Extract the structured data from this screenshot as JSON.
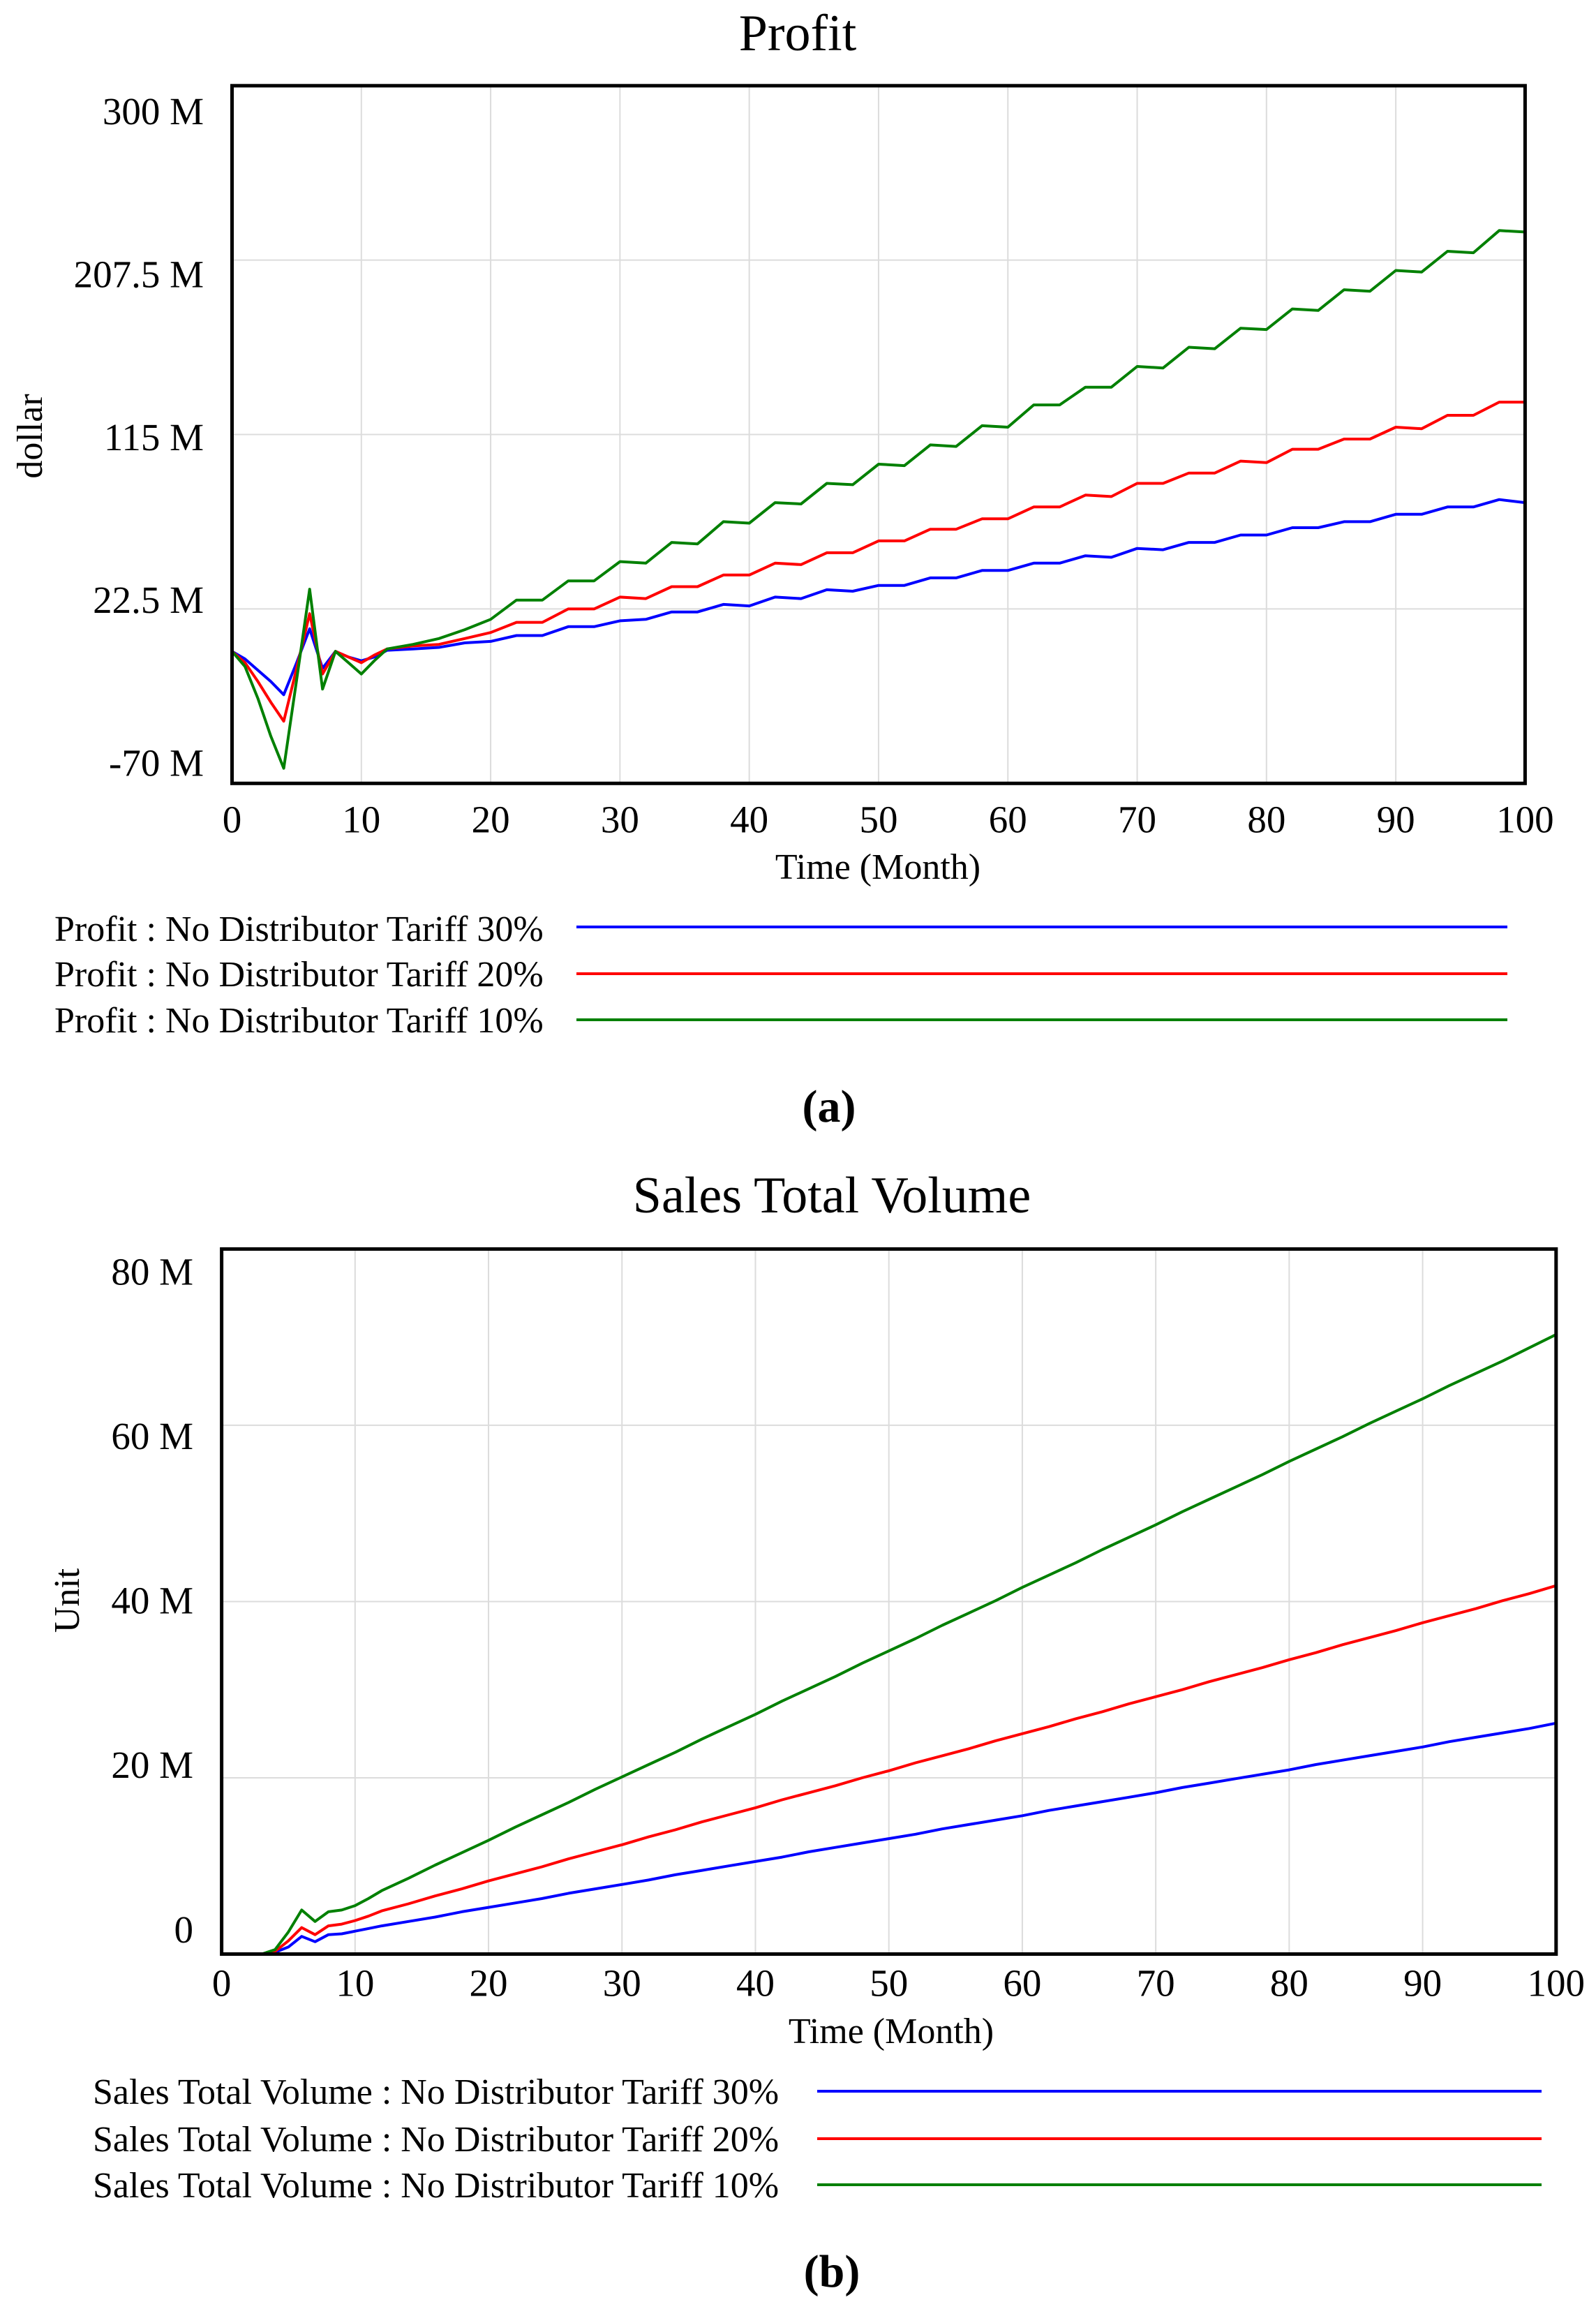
{
  "chart_data": [
    {
      "type": "line",
      "title": "Profit",
      "xlabel": "Time (Month)",
      "ylabel": "dollar",
      "xlim": [
        0,
        100
      ],
      "ylim": [
        -70,
        300
      ],
      "grid": true,
      "legend_position": "bottom",
      "xticks": [
        0,
        10,
        20,
        30,
        40,
        50,
        60,
        70,
        80,
        90,
        100
      ],
      "xtick_labels": [
        "0",
        "10",
        "20",
        "30",
        "40",
        "50",
        "60",
        "70",
        "80",
        "90",
        "100"
      ],
      "yticks": [
        300,
        207.5,
        115,
        22.5,
        -70
      ],
      "ytick_labels": [
        "300 M",
        "207.5 M",
        "115 M",
        "22.5 M",
        "-70 M"
      ],
      "x": [
        0,
        1,
        2,
        3,
        4,
        5,
        6,
        7,
        8,
        9,
        10,
        11,
        12,
        14,
        16,
        18,
        20,
        22,
        24,
        26,
        28,
        30,
        32,
        34,
        36,
        38,
        40,
        42,
        44,
        46,
        48,
        50,
        52,
        54,
        56,
        58,
        60,
        62,
        64,
        66,
        68,
        70,
        72,
        74,
        76,
        78,
        80,
        82,
        84,
        86,
        88,
        90,
        92,
        94,
        96,
        98,
        100
      ],
      "series": [
        {
          "name": "Profit : No Distributor Tariff 30%",
          "color": "#0000ff",
          "values": [
            0,
            -4,
            -10,
            -16,
            -23,
            -6,
            12,
            -9,
            0,
            -3,
            -5,
            -3,
            0.6,
            1.3,
            2.1,
            4.5,
            5.3,
            8.4,
            8.4,
            13.1,
            13.1,
            16.2,
            17.0,
            20.9,
            20.9,
            24.9,
            24.1,
            28.8,
            28.0,
            32.7,
            31.9,
            35.0,
            35.0,
            39.0,
            39.0,
            42.9,
            42.9,
            46.8,
            46.8,
            50.7,
            49.9,
            54.6,
            53.9,
            57.8,
            57.8,
            61.7,
            61.7,
            65.6,
            65.6,
            68.8,
            68.8,
            72.7,
            72.7,
            76.6,
            76.6,
            80.5,
            78.9
          ]
        },
        {
          "name": "Profit : No Distributor Tariff 20%",
          "color": "#ff0000",
          "values": [
            0,
            -6,
            -16,
            -27,
            -37,
            -9,
            20,
            -12,
            0,
            -3,
            -6,
            -2,
            1.3,
            2.9,
            3.7,
            6.8,
            10.0,
            15.4,
            15.4,
            22.5,
            22.5,
            28.8,
            28.0,
            34.3,
            34.3,
            40.5,
            40.5,
            46.8,
            46.0,
            52.3,
            52.3,
            58.6,
            58.6,
            64.8,
            64.8,
            70.3,
            70.3,
            76.6,
            76.6,
            82.9,
            82.1,
            89.1,
            89.1,
            94.6,
            94.6,
            100.9,
            100.1,
            107.2,
            107.2,
            112.6,
            112.6,
            118.9,
            118.1,
            125.2,
            125.2,
            132.2,
            132.2
          ]
        },
        {
          "name": "Profit : No Distributor Tariff 10%",
          "color": "#008000",
          "values": [
            0,
            -8,
            -25,
            -45,
            -62,
            -15,
            33,
            -20,
            0,
            -6,
            -12,
            -5,
            1.3,
            3.7,
            6.8,
            11.5,
            17.0,
            27.2,
            27.2,
            37.4,
            37.4,
            47.6,
            46.8,
            57.8,
            57.0,
            68.8,
            68.0,
            78.9,
            78.2,
            89.1,
            88.4,
            99.3,
            98.5,
            109.5,
            108.7,
            119.7,
            118.9,
            130.7,
            130.7,
            140.1,
            140.1,
            151.1,
            150.3,
            161.3,
            160.5,
            171.4,
            170.7,
            181.6,
            180.8,
            191.8,
            191.0,
            202.0,
            201.2,
            212.2,
            211.4,
            223.2,
            222.4
          ]
        }
      ],
      "caption": "(a)"
    },
    {
      "type": "line",
      "title": "Sales Total Volume",
      "xlabel": "Time (Month)",
      "ylabel": "Unit",
      "xlim": [
        0,
        100
      ],
      "ylim": [
        0,
        80
      ],
      "grid": true,
      "legend_position": "bottom",
      "xticks": [
        0,
        10,
        20,
        30,
        40,
        50,
        60,
        70,
        80,
        90,
        100
      ],
      "xtick_labels": [
        "0",
        "10",
        "20",
        "30",
        "40",
        "50",
        "60",
        "70",
        "80",
        "90",
        "100"
      ],
      "yticks": [
        80,
        60,
        40,
        20,
        0
      ],
      "ytick_labels": [
        "80 M",
        "60 M",
        "40 M",
        "20 M",
        "0"
      ],
      "x": [
        0,
        1,
        2,
        3,
        4,
        5,
        6,
        7,
        8,
        9,
        10,
        11,
        12,
        14,
        16,
        18,
        20,
        22,
        24,
        26,
        28,
        30,
        32,
        34,
        36,
        38,
        40,
        42,
        44,
        46,
        48,
        50,
        52,
        54,
        56,
        58,
        60,
        62,
        64,
        66,
        68,
        70,
        72,
        74,
        76,
        78,
        80,
        82,
        84,
        86,
        88,
        90,
        92,
        94,
        96,
        98,
        100
      ],
      "series": [
        {
          "name": "Sales Total Volume : No Distributor Tariff 30%",
          "color": "#0000ff",
          "values": [
            0,
            0,
            0,
            0,
            0.2,
            0.8,
            2.0,
            1.4,
            2.2,
            2.3,
            2.6,
            2.9,
            3.2,
            3.7,
            4.2,
            4.8,
            5.3,
            5.8,
            6.3,
            6.9,
            7.4,
            7.9,
            8.4,
            9.0,
            9.5,
            10.0,
            10.5,
            11.0,
            11.6,
            12.1,
            12.6,
            13.1,
            13.6,
            14.2,
            14.7,
            15.2,
            15.7,
            16.3,
            16.8,
            17.3,
            17.8,
            18.3,
            18.9,
            19.4,
            19.9,
            20.4,
            20.9,
            21.5,
            22.0,
            22.5,
            23.0,
            23.5,
            24.1,
            24.6,
            25.1,
            25.6,
            26.2
          ]
        },
        {
          "name": "Sales Total Volume : No Distributor Tariff 20%",
          "color": "#ff0000",
          "values": [
            0,
            0,
            0,
            0,
            0.3,
            1.5,
            3.0,
            2.2,
            3.2,
            3.4,
            3.8,
            4.3,
            4.9,
            5.7,
            6.6,
            7.4,
            8.3,
            9.1,
            9.9,
            10.8,
            11.6,
            12.4,
            13.3,
            14.1,
            15.0,
            15.8,
            16.6,
            17.5,
            18.3,
            19.1,
            20.0,
            20.8,
            21.7,
            22.5,
            23.3,
            24.2,
            25.0,
            25.8,
            26.7,
            27.5,
            28.4,
            29.2,
            30.0,
            30.9,
            31.7,
            32.5,
            33.4,
            34.2,
            35.1,
            35.9,
            36.7,
            37.6,
            38.4,
            39.2,
            40.1,
            40.9,
            41.8
          ]
        },
        {
          "name": "Sales Total Volume : No Distributor Tariff 10%",
          "color": "#008000",
          "values": [
            0,
            0,
            0,
            0,
            0.5,
            2.5,
            5.0,
            3.7,
            4.8,
            5.0,
            5.5,
            6.3,
            7.2,
            8.6,
            10.1,
            11.5,
            12.9,
            14.4,
            15.8,
            17.2,
            18.7,
            20.1,
            21.5,
            22.9,
            24.4,
            25.8,
            27.2,
            28.7,
            30.1,
            31.5,
            33.0,
            34.4,
            35.8,
            37.3,
            38.7,
            40.1,
            41.6,
            43.0,
            44.4,
            45.9,
            47.3,
            48.7,
            50.2,
            51.6,
            53.0,
            54.4,
            55.9,
            57.3,
            58.7,
            60.2,
            61.6,
            63.0,
            64.5,
            65.9,
            67.3,
            68.8,
            70.3
          ]
        }
      ],
      "caption": "(b)"
    }
  ]
}
